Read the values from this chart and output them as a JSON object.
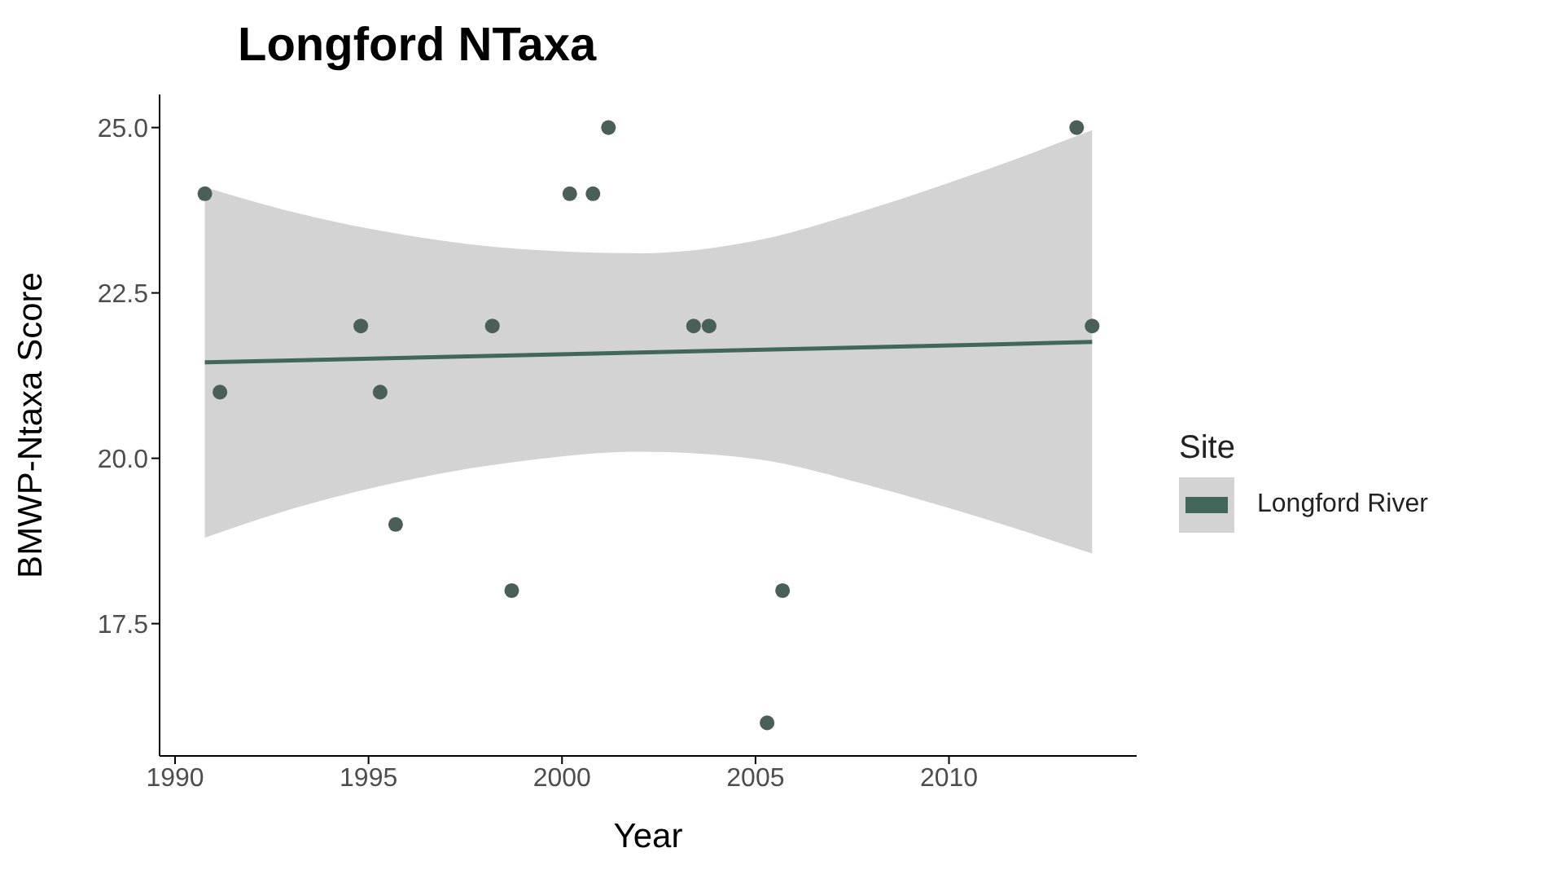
{
  "chart_data": {
    "type": "scatter",
    "title": "Longford NTaxa",
    "xlabel": "Year",
    "ylabel": "BMWP-Ntaxa Score",
    "legend_title": "Site",
    "legend": "right",
    "grid": false,
    "xlim": [
      1989.6,
      2014.85
    ],
    "xticks": [
      1990,
      1995,
      2000,
      2005,
      2010
    ],
    "ylim": [
      15.5,
      25.5
    ],
    "yticks": [
      17.5,
      {
        "value": 20,
        "label": "20.0"
      },
      22.5,
      {
        "value": 25,
        "label": "25.0"
      }
    ],
    "series": [
      {
        "marker": "circle",
        "color": "#4a5f58",
        "x": [
          1990.77,
          1991.16,
          1994.8,
          1995.3,
          1995.7,
          1998.2,
          1998.7,
          2000.2,
          2000.8,
          2001.2,
          2003.4,
          2003.8,
          2005.3,
          2005.7,
          2013.3,
          2013.7
        ],
        "values": [
          24,
          21,
          22,
          21,
          19,
          22,
          18,
          24,
          24,
          25,
          22,
          22,
          16,
          18,
          25,
          22
        ]
      },
      {
        "type": "line",
        "name": "Longford River",
        "color": "#41675a",
        "line_style": "solid",
        "x": [
          1990.77,
          1993,
          1996,
          1999,
          2002,
          2005,
          2008,
          2011,
          2013.7
        ],
        "values": [
          21.45,
          21.48,
          21.52,
          21.56,
          21.6,
          21.64,
          21.68,
          21.72,
          21.76
        ],
        "lower": [
          18.8,
          19.23,
          19.67,
          19.96,
          20.1,
          19.99,
          19.58,
          19.07,
          18.56
        ],
        "upper": [
          24.1,
          23.73,
          23.37,
          23.16,
          23.1,
          23.29,
          23.78,
          24.37,
          24.96
        ]
      }
    ]
  }
}
